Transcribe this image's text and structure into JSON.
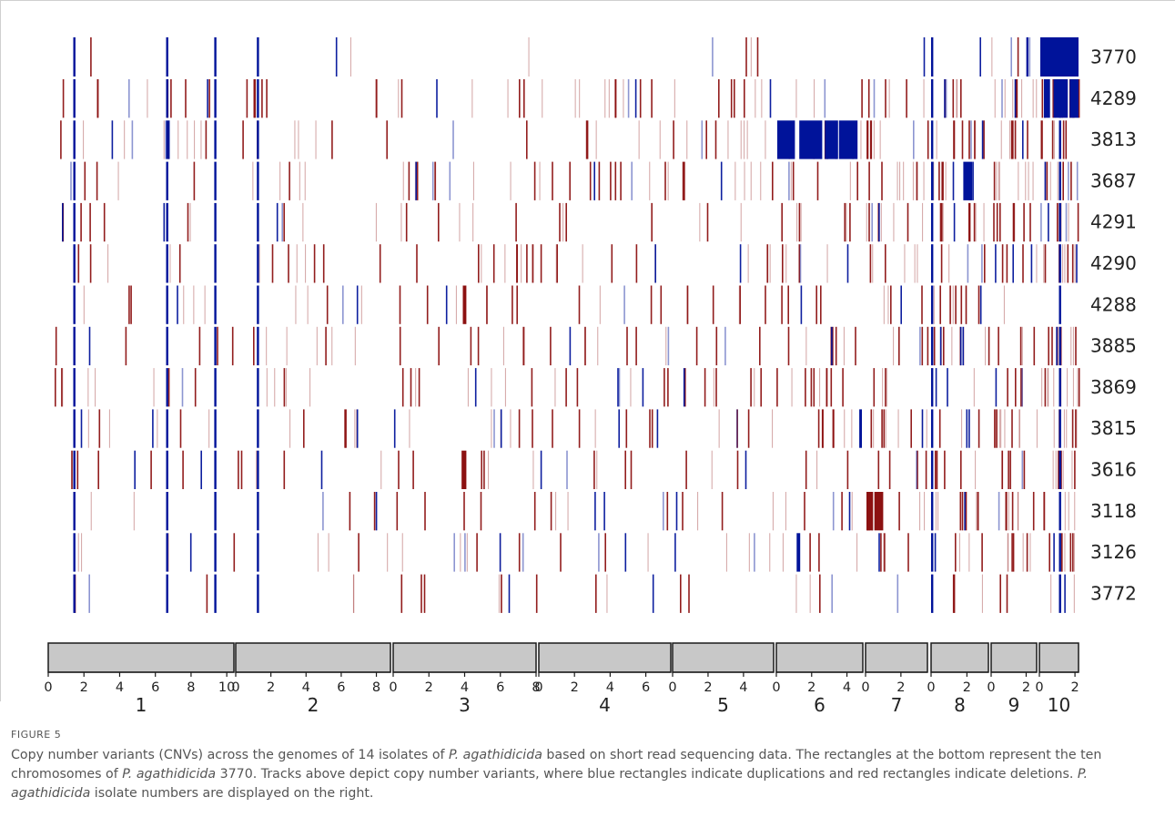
{
  "figure": {
    "label": "FIGURE 5",
    "caption": {
      "part1": "Copy number variants (CNVs) across the genomes of 14 isolates of ",
      "species1": "P. agathidicida",
      "part2": " based on short read sequencing data. The rectangles at the bottom represent the ten chromosomes of ",
      "species2": "P. agathidicida",
      "part3": " 3770. Tracks above depict copy number variants, where blue rectangles indicate duplications and red rectangles indicate deletions. ",
      "species3": "P. agathidicida",
      "part4": " isolate numbers are displayed on the right."
    }
  },
  "colors": {
    "duplication": "#00139a",
    "deletion": "#8c1111",
    "chromosome_fill": "#c8c8c8",
    "chromosome_stroke": "#1a1a1a",
    "text": "#222222"
  },
  "chart_data": {
    "type": "heatmap",
    "x_unit": "Mb",
    "isolates": [
      "3770",
      "4289",
      "3813",
      "3687",
      "4291",
      "4290",
      "4288",
      "3885",
      "3869",
      "3815",
      "3616",
      "3118",
      "3126",
      "3772"
    ],
    "chromosomes": [
      {
        "label": "1",
        "length": 10.4,
        "ticks": [
          0,
          2,
          4,
          6,
          8,
          10
        ],
        "tick_labels": [
          "0",
          "2",
          "4",
          "6",
          "8",
          "10"
        ]
      },
      {
        "label": "2",
        "length": 8.8,
        "ticks": [
          0,
          2,
          4,
          6,
          8
        ],
        "tick_labels": [
          "0",
          "2",
          "4",
          "6",
          "8"
        ]
      },
      {
        "label": "3",
        "length": 8.0,
        "ticks": [
          0,
          2,
          4,
          6,
          8
        ],
        "tick_labels": [
          "0",
          "2",
          "4",
          "6",
          "8"
        ]
      },
      {
        "label": "4",
        "length": 7.4,
        "ticks": [
          0,
          2,
          4,
          6
        ],
        "tick_labels": [
          "0",
          "2",
          "4",
          "6"
        ]
      },
      {
        "label": "5",
        "length": 5.7,
        "ticks": [
          0,
          2,
          4
        ],
        "tick_labels": [
          "0",
          "2",
          "4"
        ]
      },
      {
        "label": "6",
        "length": 4.9,
        "ticks": [
          0,
          2,
          4
        ],
        "tick_labels": [
          "0",
          "2",
          "4"
        ]
      },
      {
        "label": "7",
        "length": 3.5,
        "ticks": [
          0,
          2
        ],
        "tick_labels": [
          "0",
          "2"
        ]
      },
      {
        "label": "8",
        "length": 3.2,
        "ticks": [
          0,
          2
        ],
        "tick_labels": [
          "0",
          "2"
        ]
      },
      {
        "label": "9",
        "length": 2.6,
        "ticks": [
          0,
          2
        ],
        "tick_labels": [
          "0",
          "2"
        ]
      },
      {
        "label": "10",
        "length": 2.2,
        "ticks": [
          0,
          2
        ],
        "tick_labels": [
          "0",
          "2"
        ]
      }
    ],
    "common_duplications": [
      {
        "chrom": 0,
        "start": 1.4,
        "width": 0.06,
        "rows": "all"
      },
      {
        "chrom": 0,
        "start": 6.6,
        "width": 0.08,
        "rows": "all"
      },
      {
        "chrom": 0,
        "start": 9.3,
        "width": 0.1,
        "rows": "all"
      },
      {
        "chrom": 1,
        "start": 1.2,
        "width": 0.1,
        "rows": "all"
      },
      {
        "chrom": 5,
        "start": 0.0,
        "width": 0.05,
        "rows": "none"
      },
      {
        "chrom": 6,
        "start": 3.4,
        "width": 0.05,
        "rows": "none"
      },
      {
        "chrom": 7,
        "start": 0.0,
        "width": 0.06,
        "rows": "all"
      },
      {
        "chrom": 9,
        "start": 1.1,
        "width": 0.08,
        "rows": [
          1,
          2,
          3,
          4,
          5,
          6,
          7,
          8,
          9,
          10,
          11,
          12,
          13
        ]
      }
    ],
    "large_cnvs": [
      {
        "isolate": "3770",
        "chrom": 9,
        "start": 0.05,
        "end": 2.2,
        "kind": "duplication"
      },
      {
        "isolate": "4289",
        "chrom": 9,
        "start": 0.25,
        "end": 0.6,
        "kind": "duplication"
      },
      {
        "isolate": "4289",
        "chrom": 9,
        "start": 0.8,
        "end": 1.6,
        "kind": "duplication"
      },
      {
        "isolate": "4289",
        "chrom": 9,
        "start": 1.7,
        "end": 2.2,
        "kind": "duplication"
      },
      {
        "isolate": "3813",
        "chrom": 5,
        "start": 0.05,
        "end": 1.05,
        "kind": "duplication"
      },
      {
        "isolate": "3813",
        "chrom": 5,
        "start": 1.3,
        "end": 2.6,
        "kind": "duplication"
      },
      {
        "isolate": "3813",
        "chrom": 5,
        "start": 2.75,
        "end": 3.5,
        "kind": "duplication"
      },
      {
        "isolate": "3813",
        "chrom": 5,
        "start": 3.55,
        "end": 4.6,
        "kind": "duplication"
      },
      {
        "isolate": "3687",
        "chrom": 7,
        "start": 1.8,
        "end": 2.3,
        "kind": "duplication"
      },
      {
        "isolate": "3118",
        "chrom": 6,
        "start": 0.05,
        "end": 0.4,
        "kind": "deletion"
      },
      {
        "isolate": "3118",
        "chrom": 6,
        "start": 0.5,
        "end": 1.0,
        "kind": "deletion"
      },
      {
        "isolate": "4288",
        "chrom": 2,
        "start": 3.9,
        "end": 4.1,
        "kind": "deletion"
      },
      {
        "isolate": "3616",
        "chrom": 2,
        "start": 3.9,
        "end": 4.1,
        "kind": "deletion"
      },
      {
        "isolate": "3126",
        "chrom": 5,
        "start": 1.15,
        "end": 1.35,
        "kind": "duplication"
      },
      {
        "isolate": "3815",
        "chrom": 5,
        "start": 4.7,
        "end": 4.85,
        "kind": "duplication"
      }
    ],
    "row_density": [
      {
        "isolate": "3770",
        "deletion": 8,
        "duplication": 8
      },
      {
        "isolate": "4289",
        "deletion": 70,
        "duplication": 12
      },
      {
        "isolate": "3813",
        "deletion": 70,
        "duplication": 10
      },
      {
        "isolate": "3687",
        "deletion": 70,
        "duplication": 14
      },
      {
        "isolate": "4291",
        "deletion": 60,
        "duplication": 10
      },
      {
        "isolate": "4290",
        "deletion": 60,
        "duplication": 10
      },
      {
        "isolate": "4288",
        "deletion": 45,
        "duplication": 8
      },
      {
        "isolate": "3885",
        "deletion": 60,
        "duplication": 10
      },
      {
        "isolate": "3869",
        "deletion": 65,
        "duplication": 10
      },
      {
        "isolate": "3815",
        "deletion": 65,
        "duplication": 12
      },
      {
        "isolate": "3616",
        "deletion": 50,
        "duplication": 8
      },
      {
        "isolate": "3118",
        "deletion": 50,
        "duplication": 10
      },
      {
        "isolate": "3126",
        "deletion": 45,
        "duplication": 12
      },
      {
        "isolate": "3772",
        "deletion": 25,
        "duplication": 6
      }
    ]
  }
}
